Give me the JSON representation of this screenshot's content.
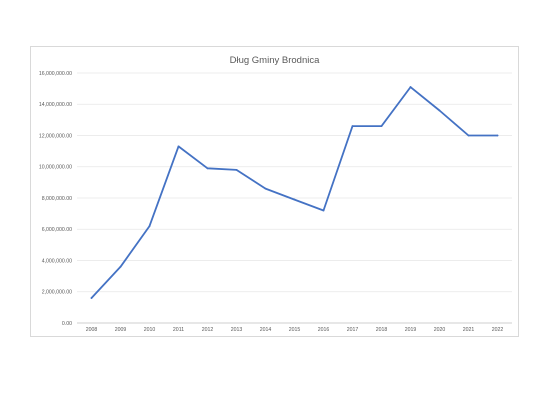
{
  "chart_data": {
    "type": "line",
    "title": "Dług Gminy Brodnica",
    "xlabel": "",
    "ylabel": "",
    "ylim": [
      0,
      16000000
    ],
    "y_ticks": [
      "0.00",
      "2,000,000.00",
      "4,000,000.00",
      "6,000,000.00",
      "8,000,000.00",
      "10,000,000.00",
      "12,000,000.00",
      "14,000,000.00",
      "16,000,000.00"
    ],
    "categories": [
      "2008",
      "2009",
      "2010",
      "2011",
      "2012",
      "2013",
      "2014",
      "2015",
      "2016",
      "2017",
      "2018",
      "2019",
      "2020",
      "2021",
      "2022"
    ],
    "series": [
      {
        "values": [
          1600000,
          3600000,
          6200000,
          11300000,
          9900000,
          9800000,
          8600000,
          7900000,
          7200000,
          12600000,
          12600000,
          15100000,
          13600000,
          12000000,
          12000000
        ],
        "color": "#4472c4"
      }
    ],
    "grid": true,
    "legend": "none"
  }
}
